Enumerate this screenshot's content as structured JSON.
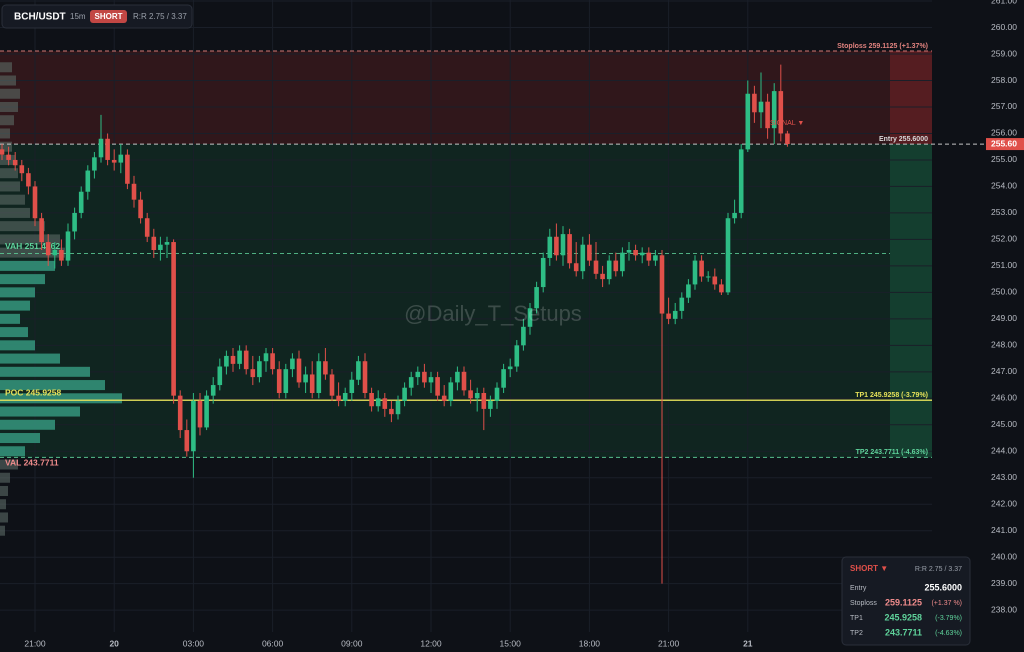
{
  "chart_data": {
    "type": "candlestick",
    "symbol": "BCH/USDT",
    "timeframe": "15m",
    "side": "SHORT",
    "rr": "R:R 2.75 / 3.37",
    "watermark": "@Daily_T_Setups",
    "annotation": "SIGNAL ▼",
    "up_color": "#2ebd85",
    "down_color": "#e0504a",
    "ylim": [
      236.42,
      261.04
    ],
    "yticks": [
      {
        "value": 238,
        "label": "238.00"
      },
      {
        "value": 239,
        "label": "239.00"
      },
      {
        "value": 240,
        "label": "240.00"
      },
      {
        "value": 241,
        "label": "241.00"
      },
      {
        "value": 242,
        "label": "242.00"
      },
      {
        "value": 243,
        "label": "243.00"
      },
      {
        "value": 244,
        "label": "244.00"
      },
      {
        "value": 245,
        "label": "245.00"
      },
      {
        "value": 246,
        "label": "246.00"
      },
      {
        "value": 247,
        "label": "247.00"
      },
      {
        "value": 248,
        "label": "248.00"
      },
      {
        "value": 249,
        "label": "249.00"
      },
      {
        "value": 250,
        "label": "250.00"
      },
      {
        "value": 251,
        "label": "251.00"
      },
      {
        "value": 252,
        "label": "252.00"
      },
      {
        "value": 253,
        "label": "253.00"
      },
      {
        "value": 254,
        "label": "254.00"
      },
      {
        "value": 255,
        "label": "255.00"
      },
      {
        "value": 256,
        "label": "256.00"
      },
      {
        "value": 257,
        "label": "257.00"
      },
      {
        "value": 258,
        "label": "258.00"
      },
      {
        "value": 259,
        "label": "259.00"
      },
      {
        "value": 260,
        "label": "260.00"
      },
      {
        "value": 261,
        "label": "261.00"
      }
    ],
    "grid": true,
    "last_price": {
      "value": 255.6,
      "label": "255.60"
    },
    "categories": [
      null,
      null,
      null,
      null,
      null,
      "21:00",
      null,
      null,
      null,
      null,
      null,
      null,
      null,
      null,
      null,
      null,
      null,
      "20",
      null,
      null,
      null,
      null,
      null,
      null,
      null,
      null,
      null,
      null,
      null,
      "03:00",
      null,
      null,
      null,
      null,
      null,
      null,
      null,
      null,
      null,
      null,
      null,
      "06:00",
      null,
      null,
      null,
      null,
      null,
      null,
      null,
      null,
      null,
      null,
      null,
      "09:00",
      null,
      null,
      null,
      null,
      null,
      null,
      null,
      null,
      null,
      null,
      null,
      "12:00",
      null,
      null,
      null,
      null,
      null,
      null,
      null,
      null,
      null,
      null,
      null,
      "15:00",
      null,
      null,
      null,
      null,
      null,
      null,
      null,
      null,
      null,
      null,
      null,
      "18:00",
      null,
      null,
      null,
      null,
      null,
      null,
      null,
      null,
      null,
      null,
      null,
      "21:00",
      null,
      null,
      null,
      null,
      null,
      null,
      null,
      null,
      null,
      null,
      null,
      "21",
      null,
      null,
      null,
      null,
      null,
      null
    ],
    "candles": [
      [
        255.4,
        255.6,
        255.0,
        255.2
      ],
      [
        255.2,
        255.5,
        254.8,
        255.0
      ],
      [
        255.0,
        255.3,
        254.6,
        254.8
      ],
      [
        254.8,
        255.0,
        254.2,
        254.5
      ],
      [
        254.5,
        254.7,
        253.7,
        254.0
      ],
      [
        254.0,
        254.2,
        252.5,
        252.8
      ],
      [
        252.8,
        253.0,
        251.6,
        251.9
      ],
      [
        251.9,
        252.2,
        251.0,
        251.4
      ],
      [
        251.4,
        251.9,
        250.9,
        251.6
      ],
      [
        251.6,
        252.0,
        251.0,
        251.2
      ],
      [
        251.2,
        252.6,
        251.0,
        252.3
      ],
      [
        252.3,
        253.2,
        252.0,
        253.0
      ],
      [
        253.0,
        254.0,
        252.8,
        253.8
      ],
      [
        253.8,
        254.8,
        253.5,
        254.6
      ],
      [
        254.6,
        255.3,
        254.3,
        255.1
      ],
      [
        255.1,
        256.7,
        254.9,
        255.8
      ],
      [
        255.8,
        256.0,
        254.8,
        255.0
      ],
      [
        255.0,
        255.4,
        254.6,
        254.9
      ],
      [
        254.9,
        255.6,
        254.5,
        255.2
      ],
      [
        255.2,
        255.4,
        253.9,
        254.1
      ],
      [
        254.1,
        254.4,
        253.2,
        253.5
      ],
      [
        253.5,
        253.8,
        252.6,
        252.8
      ],
      [
        252.8,
        253.0,
        251.9,
        252.1
      ],
      [
        252.1,
        252.4,
        251.3,
        251.6
      ],
      [
        251.6,
        252.1,
        251.2,
        251.8
      ],
      [
        251.8,
        252.1,
        251.3,
        251.9
      ],
      [
        251.9,
        252.0,
        245.8,
        246.1
      ],
      [
        246.1,
        246.3,
        244.5,
        244.8
      ],
      [
        244.8,
        245.2,
        243.8,
        244.0
      ],
      [
        244.0,
        246.2,
        243.0,
        245.9
      ],
      [
        245.9,
        246.2,
        244.6,
        244.9
      ],
      [
        244.9,
        246.3,
        244.8,
        246.1
      ],
      [
        246.1,
        246.8,
        245.8,
        246.5
      ],
      [
        246.5,
        247.5,
        246.3,
        247.2
      ],
      [
        247.2,
        247.8,
        246.9,
        247.6
      ],
      [
        247.6,
        247.9,
        247.0,
        247.3
      ],
      [
        247.3,
        248.0,
        247.1,
        247.8
      ],
      [
        247.8,
        248.0,
        246.9,
        247.1
      ],
      [
        247.1,
        247.6,
        246.5,
        246.8
      ],
      [
        246.8,
        247.6,
        246.6,
        247.4
      ],
      [
        247.4,
        247.9,
        247.0,
        247.7
      ],
      [
        247.7,
        247.9,
        246.9,
        247.1
      ],
      [
        247.1,
        247.4,
        246.0,
        246.2
      ],
      [
        246.2,
        247.3,
        246.0,
        247.1
      ],
      [
        247.1,
        247.7,
        246.8,
        247.5
      ],
      [
        247.5,
        247.8,
        246.4,
        246.6
      ],
      [
        246.6,
        247.2,
        246.2,
        246.9
      ],
      [
        246.9,
        247.4,
        246.0,
        246.2
      ],
      [
        246.2,
        247.7,
        246.0,
        247.4
      ],
      [
        247.4,
        247.9,
        246.7,
        246.9
      ],
      [
        246.9,
        247.1,
        245.9,
        246.1
      ],
      [
        246.1,
        246.6,
        245.7,
        245.9
      ],
      [
        245.9,
        246.4,
        245.7,
        246.2
      ],
      [
        246.2,
        247.0,
        245.9,
        246.7
      ],
      [
        246.7,
        247.6,
        246.5,
        247.4
      ],
      [
        247.4,
        247.7,
        246.0,
        246.2
      ],
      [
        246.2,
        246.4,
        245.5,
        245.7
      ],
      [
        245.7,
        246.3,
        245.5,
        246.0
      ],
      [
        246.0,
        246.2,
        245.3,
        245.6
      ],
      [
        245.6,
        245.9,
        245.1,
        245.4
      ],
      [
        245.4,
        246.1,
        245.2,
        245.9
      ],
      [
        245.9,
        246.6,
        245.7,
        246.4
      ],
      [
        246.4,
        247.0,
        246.1,
        246.8
      ],
      [
        246.8,
        247.2,
        246.5,
        247.0
      ],
      [
        247.0,
        247.3,
        246.4,
        246.6
      ],
      [
        246.6,
        247.0,
        246.2,
        246.8
      ],
      [
        246.8,
        247.0,
        245.9,
        246.1
      ],
      [
        246.1,
        246.5,
        245.7,
        245.9
      ],
      [
        245.9,
        246.8,
        245.7,
        246.6
      ],
      [
        246.6,
        247.2,
        246.3,
        247.0
      ],
      [
        247.0,
        247.2,
        246.1,
        246.3
      ],
      [
        246.3,
        246.7,
        245.8,
        246.0
      ],
      [
        246.0,
        246.4,
        245.5,
        246.2
      ],
      [
        246.2,
        246.4,
        244.8,
        245.6
      ],
      [
        245.6,
        246.1,
        245.3,
        245.9
      ],
      [
        245.9,
        246.6,
        245.6,
        246.4
      ],
      [
        246.4,
        247.3,
        246.2,
        247.1
      ],
      [
        247.1,
        247.5,
        246.8,
        247.2
      ],
      [
        247.2,
        248.2,
        247.0,
        248.0
      ],
      [
        248.0,
        249.0,
        247.8,
        248.7
      ],
      [
        248.7,
        249.6,
        248.4,
        249.4
      ],
      [
        249.4,
        250.4,
        249.2,
        250.2
      ],
      [
        250.2,
        251.5,
        250.0,
        251.3
      ],
      [
        251.3,
        252.4,
        251.0,
        252.1
      ],
      [
        252.1,
        252.6,
        251.2,
        251.4
      ],
      [
        251.4,
        252.5,
        251.0,
        252.2
      ],
      [
        252.2,
        252.4,
        250.9,
        251.1
      ],
      [
        251.1,
        251.9,
        250.6,
        250.8
      ],
      [
        250.8,
        252.1,
        250.5,
        251.8
      ],
      [
        251.8,
        252.2,
        251.0,
        251.2
      ],
      [
        251.2,
        251.9,
        250.5,
        250.7
      ],
      [
        250.7,
        251.0,
        250.2,
        250.5
      ],
      [
        250.5,
        251.4,
        250.3,
        251.2
      ],
      [
        251.2,
        251.5,
        250.6,
        250.8
      ],
      [
        250.8,
        251.7,
        250.6,
        251.5
      ],
      [
        251.5,
        251.9,
        251.2,
        251.6
      ],
      [
        251.6,
        251.8,
        251.2,
        251.4
      ],
      [
        251.4,
        251.7,
        251.1,
        251.5
      ],
      [
        251.5,
        251.7,
        251.0,
        251.2
      ],
      [
        251.2,
        251.6,
        251.0,
        251.4
      ],
      [
        251.4,
        251.6,
        239.0,
        249.2
      ],
      [
        249.2,
        249.8,
        248.8,
        249.0
      ],
      [
        249.0,
        249.6,
        248.8,
        249.3
      ],
      [
        249.3,
        250.0,
        249.0,
        249.8
      ],
      [
        249.8,
        250.5,
        249.6,
        250.3
      ],
      [
        250.3,
        251.4,
        250.1,
        251.2
      ],
      [
        251.2,
        251.4,
        250.4,
        250.6
      ],
      [
        250.6,
        250.8,
        250.4,
        250.6
      ],
      [
        250.6,
        250.9,
        250.1,
        250.3
      ],
      [
        250.3,
        250.5,
        249.9,
        250.0
      ],
      [
        250.0,
        253.0,
        249.9,
        252.8
      ],
      [
        252.8,
        253.5,
        252.6,
        253.0
      ],
      [
        253.0,
        255.6,
        252.8,
        255.4
      ],
      [
        255.4,
        258.0,
        255.3,
        257.5
      ],
      [
        257.5,
        257.8,
        256.4,
        256.8
      ],
      [
        256.8,
        258.3,
        256.2,
        257.2
      ],
      [
        257.2,
        257.5,
        255.8,
        256.2
      ],
      [
        256.2,
        257.9,
        255.6,
        257.6
      ],
      [
        257.6,
        258.6,
        255.7,
        256.0
      ],
      [
        256.0,
        256.1,
        255.5,
        255.6
      ]
    ],
    "levels": [
      {
        "value": 259.1125,
        "label": "Stoploss 259.1125 (+1.37%)",
        "color": "#e2837f",
        "dash": true
      },
      {
        "value": 255.6,
        "label": "Entry 255.6000",
        "color": "#d8d8d8",
        "dash": true
      },
      {
        "value": 245.9258,
        "label": "TP1 245.9258 (-3.79%)",
        "color": "#e6e05a",
        "dash": false
      },
      {
        "value": 243.7711,
        "label": "TP2 243.7711 (-4.63%)",
        "color": "#5fd39b",
        "dash": true
      }
    ],
    "profile_levels": [
      {
        "value": 251.4662,
        "label": "VAH 251.4662",
        "color": "#5fd39b"
      },
      {
        "value": 245.9258,
        "label": "POC 245.9258",
        "color": "#e6e05a"
      },
      {
        "value": 243.7711,
        "label": "VAL 243.7711",
        "color": "#f08c8c"
      }
    ],
    "volume_profile": {
      "prices": [
        241,
        241.5,
        242,
        242.5,
        243,
        243.5,
        244,
        244.5,
        245,
        245.5,
        246,
        246.5,
        247,
        247.5,
        248,
        248.5,
        249,
        249.5,
        250,
        250.5,
        251,
        251.5,
        252,
        252.5,
        253,
        253.5,
        254,
        254.5,
        255,
        255.5,
        256,
        256.5,
        257,
        257.5,
        258,
        258.5
      ],
      "volumes": [
        5,
        8,
        6,
        8,
        10,
        18,
        25,
        40,
        55,
        80,
        122,
        105,
        90,
        60,
        35,
        28,
        20,
        30,
        35,
        45,
        55,
        65,
        60,
        45,
        30,
        25,
        20,
        18,
        15,
        12,
        10,
        14,
        18,
        20,
        16,
        12
      ]
    },
    "panel": {
      "title": "SHORT ▼",
      "rr": "R:R 2.75 / 3.37",
      "rows": [
        [
          "Entry",
          "255.6000",
          ""
        ],
        [
          "Stoploss",
          "259.1125",
          "(+1.37 %)"
        ],
        [
          "TP1",
          "245.9258",
          "(-3.79%)"
        ],
        [
          "TP2",
          "243.7711",
          "(-4.63%)"
        ]
      ]
    }
  }
}
